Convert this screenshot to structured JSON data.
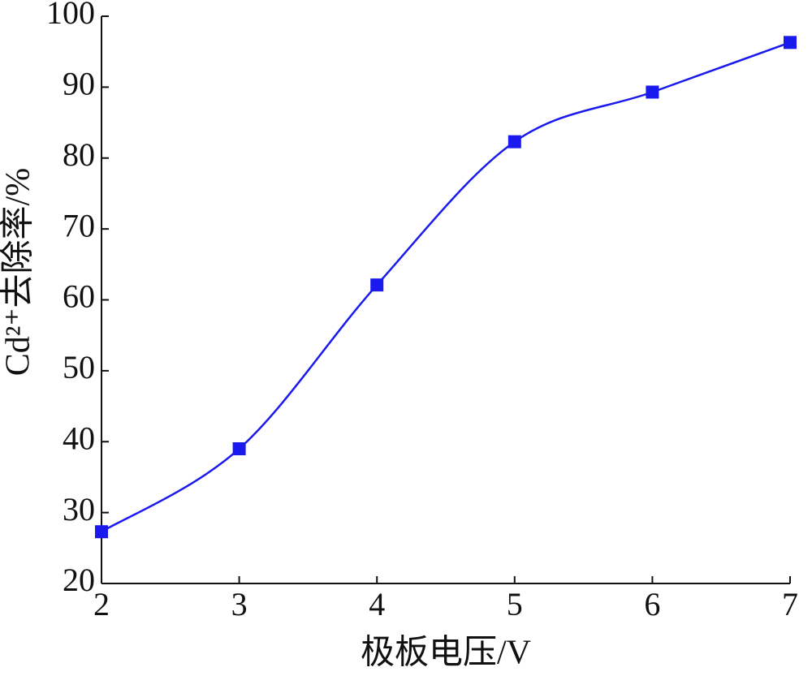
{
  "chart_data": {
    "type": "line",
    "xlabel": "极板电压/V",
    "ylabel": "Cd²⁺去除率/%",
    "x": [
      2,
      3,
      4,
      5,
      6,
      7
    ],
    "series": [
      {
        "color": "#1a1aee",
        "values": [
          27.3,
          39.0,
          62.1,
          82.3,
          89.3,
          96.3
        ]
      }
    ],
    "xlim": [
      2,
      7
    ],
    "ylim": [
      20,
      100
    ],
    "xticks": [
      2,
      3,
      4,
      5,
      6,
      7
    ],
    "yticks": [
      20,
      30,
      40,
      50,
      60,
      70,
      80,
      90,
      100
    ],
    "smooth": true,
    "marker": "square"
  }
}
